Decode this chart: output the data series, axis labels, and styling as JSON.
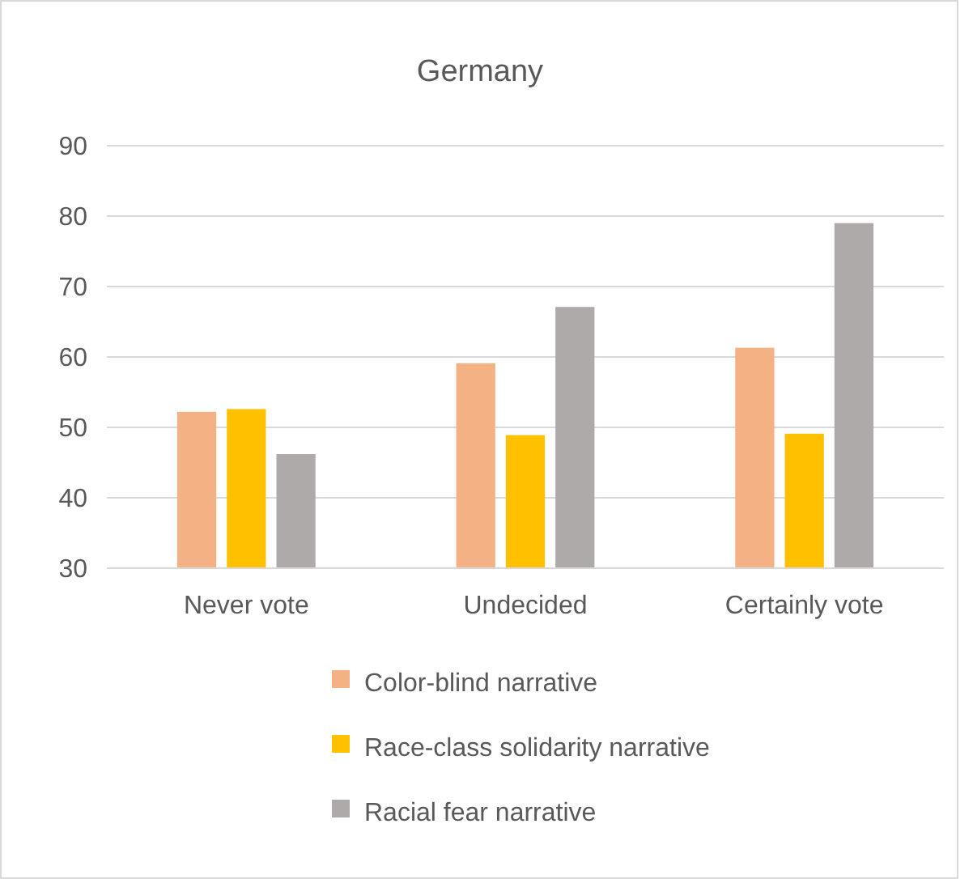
{
  "chart_data": {
    "type": "bar",
    "title": "Germany",
    "categories": [
      "Never vote",
      "Undecided",
      "Certainly vote"
    ],
    "series": [
      {
        "name": "Color-blind narrative",
        "color": "#f4b183",
        "values": [
          52.2,
          59.1,
          61.3
        ]
      },
      {
        "name": "Race-class solidarity narrative",
        "color": "#ffc000",
        "values": [
          52.6,
          48.9,
          49.1
        ]
      },
      {
        "name": "Racial fear narrative",
        "color": "#aeaaaa",
        "values": [
          46.2,
          67.1,
          79.0
        ]
      }
    ],
    "ylim": [
      30,
      90
    ],
    "yticks": [
      30,
      40,
      50,
      60,
      70,
      80,
      90
    ],
    "grid": "y",
    "legend": "bottom"
  }
}
